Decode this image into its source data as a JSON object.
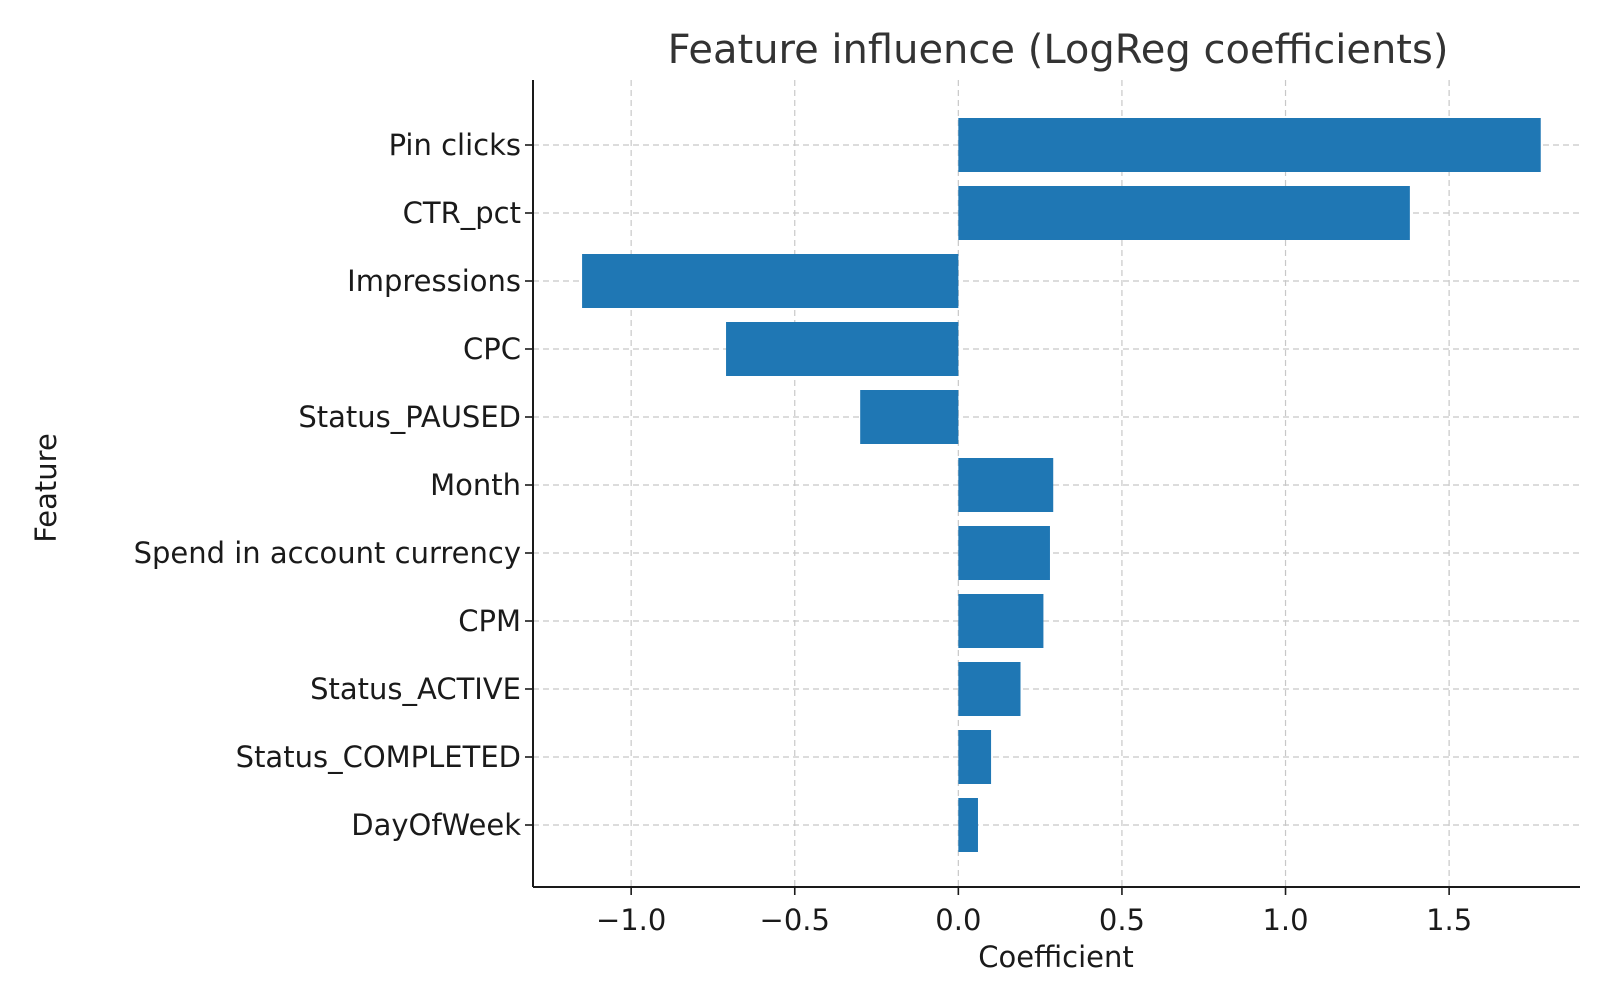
{
  "chart_data": {
    "type": "bar",
    "orientation": "horizontal",
    "title": "Feature influence (LogReg coefficients)",
    "xlabel": "Coefficient",
    "ylabel": "Feature",
    "categories": [
      "Pin clicks",
      "CTR_pct",
      "Impressions",
      "CPC",
      "Status_PAUSED",
      "Month",
      "Spend in account currency",
      "CPM",
      "Status_ACTIVE",
      "Status_COMPLETED",
      "DayOfWeek"
    ],
    "values": [
      1.78,
      1.38,
      -1.15,
      -0.71,
      -0.3,
      0.29,
      0.28,
      0.26,
      0.19,
      0.1,
      0.06
    ],
    "xlim": [
      -1.3,
      1.9
    ],
    "xticks": [
      -1.0,
      -0.5,
      0.0,
      0.5,
      1.0,
      1.5
    ],
    "xtick_labels": [
      "−1.0",
      "−0.5",
      "0.0",
      "0.5",
      "1.0",
      "1.5"
    ],
    "grid": true,
    "bar_color": "#1f77b4"
  }
}
